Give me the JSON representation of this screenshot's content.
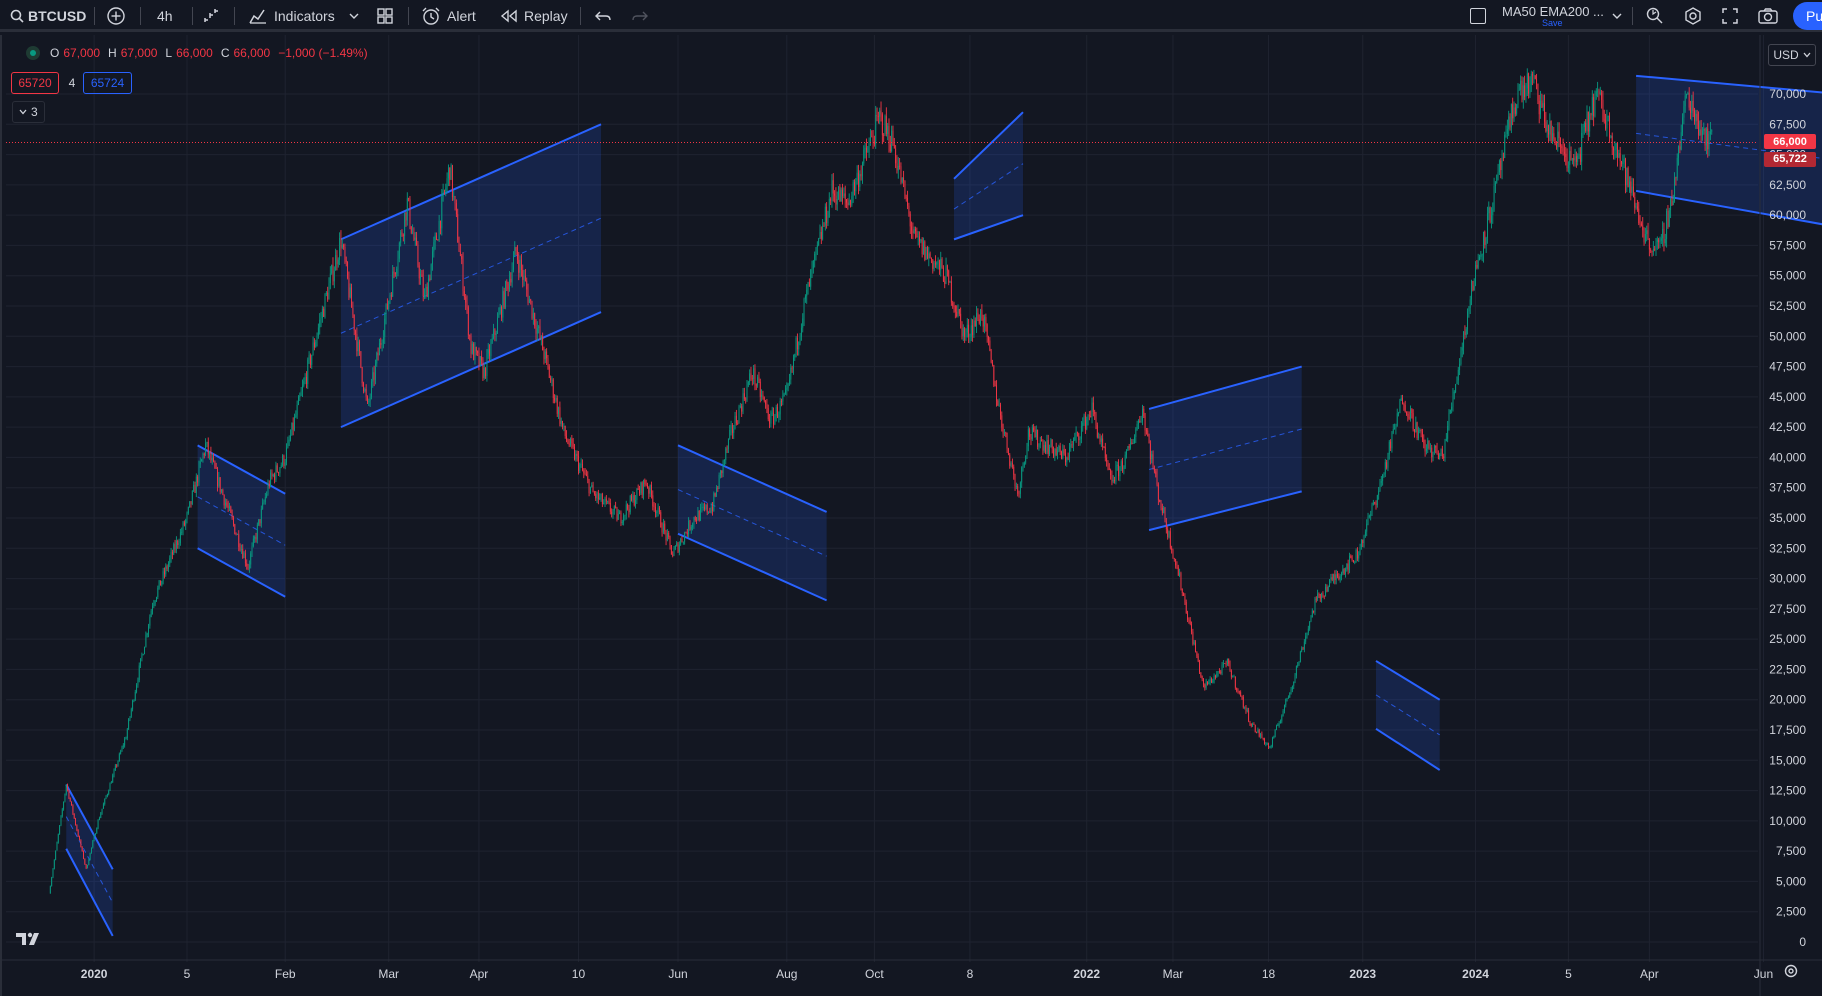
{
  "toolbar": {
    "symbol": "BTCUSD",
    "interval": "4h",
    "indicators_label": "Indicators",
    "alert_label": "Alert",
    "replay_label": "Replay",
    "layout_name": "MA50 EMA200 ...",
    "layout_save": "Save",
    "publish_label": "Pu",
    "icons": [
      "search-icon",
      "add-symbol-icon",
      "bar-style-icon",
      "indicators-icon",
      "templates-icon",
      "alert-icon",
      "replay-icon",
      "undo-icon",
      "redo-icon",
      "layout-icon",
      "quick-search-icon",
      "settings-icon",
      "fullscreen-icon",
      "camera-icon"
    ]
  },
  "legend": {
    "o_label": "O",
    "o_value": "67,000",
    "h_label": "H",
    "h_value": "67,000",
    "l_label": "L",
    "l_value": "66,000",
    "c_label": "C",
    "c_value": "66,000",
    "change": "−1,000 (−1.49%)",
    "sell_price": "65720",
    "spread": "4",
    "buy_price": "65724",
    "collapsed_count": "3"
  },
  "price_scale": {
    "currency": "USD",
    "last_price_label": "66,000",
    "bid_label": "65,722",
    "last_price": 66000,
    "bid_price": 65722
  },
  "colors": {
    "up": "#089981",
    "down": "#f23645",
    "channel_line": "#2962ff",
    "channel_fill": "#2962ff",
    "background": "#131722",
    "grid": "#1f2330"
  },
  "chart_data": {
    "type": "candlestick",
    "title": "",
    "ylim": [
      0,
      72500
    ],
    "y_ticks": [
      0,
      2500,
      5000,
      7500,
      10000,
      12500,
      15000,
      17500,
      20000,
      22500,
      25000,
      27500,
      30000,
      32500,
      35000,
      37500,
      40000,
      42500,
      45000,
      47500,
      50000,
      52500,
      55000,
      57500,
      60000,
      62500,
      65000,
      67500,
      70000
    ],
    "y_tick_labels": [
      "0",
      "2,500",
      "5,000",
      "7,500",
      "10,000",
      "12,500",
      "15,000",
      "17,500",
      "20,000",
      "22,500",
      "25,000",
      "27,500",
      "30,000",
      "32,500",
      "35,000",
      "37,500",
      "40,000",
      "42,500",
      "45,000",
      "47,500",
      "50,000",
      "52,500",
      "55,000",
      "57,500",
      "60,000",
      "62,500",
      "65,000",
      "67,500",
      "70,000"
    ],
    "x_ticks": [
      "2020",
      "5",
      "Feb",
      "Mar",
      "Apr",
      "10",
      "Jun",
      "Aug",
      "Oct",
      "8",
      "2022",
      "Mar",
      "18",
      "2023",
      "2024",
      "5",
      "Apr",
      "Jun"
    ],
    "x_tick_bars": [
      34,
      104,
      178,
      256,
      324,
      399,
      474,
      556,
      622,
      694,
      782,
      847,
      919,
      990,
      1075,
      1145,
      1206,
      1292
    ],
    "price_path": [
      [
        0,
        4000
      ],
      [
        13,
        13000
      ],
      [
        28,
        6000
      ],
      [
        37,
        10000
      ],
      [
        58,
        17000
      ],
      [
        78,
        28000
      ],
      [
        104,
        35000
      ],
      [
        118,
        41000
      ],
      [
        150,
        31000
      ],
      [
        166,
        38000
      ],
      [
        178,
        40000
      ],
      [
        220,
        58000
      ],
      [
        240,
        44000
      ],
      [
        270,
        61000
      ],
      [
        283,
        53000
      ],
      [
        302,
        64000
      ],
      [
        318,
        49000
      ],
      [
        328,
        47000
      ],
      [
        352,
        57000
      ],
      [
        372,
        49000
      ],
      [
        388,
        42000
      ],
      [
        410,
        37000
      ],
      [
        430,
        35000
      ],
      [
        450,
        38000
      ],
      [
        470,
        32000
      ],
      [
        486,
        35000
      ],
      [
        500,
        36000
      ],
      [
        514,
        42000
      ],
      [
        530,
        47000
      ],
      [
        544,
        43000
      ],
      [
        556,
        45000
      ],
      [
        568,
        52000
      ],
      [
        590,
        62000
      ],
      [
        602,
        61000
      ],
      [
        626,
        68000
      ],
      [
        636,
        66000
      ],
      [
        652,
        58000
      ],
      [
        676,
        55000
      ],
      [
        690,
        50000
      ],
      [
        703,
        52000
      ],
      [
        716,
        44000
      ],
      [
        730,
        37000
      ],
      [
        738,
        42000
      ],
      [
        766,
        40000
      ],
      [
        786,
        44000
      ],
      [
        800,
        38000
      ],
      [
        812,
        40000
      ],
      [
        824,
        44000
      ],
      [
        836,
        37000
      ],
      [
        852,
        30000
      ],
      [
        870,
        21000
      ],
      [
        888,
        23000
      ],
      [
        906,
        18000
      ],
      [
        920,
        16000
      ],
      [
        936,
        21000
      ],
      [
        954,
        28000
      ],
      [
        968,
        30000
      ],
      [
        986,
        32000
      ],
      [
        1004,
        38000
      ],
      [
        1020,
        45000
      ],
      [
        1036,
        41000
      ],
      [
        1050,
        40000
      ],
      [
        1074,
        55000
      ],
      [
        1090,
        62000
      ],
      [
        1106,
        70000
      ],
      [
        1118,
        71000
      ],
      [
        1130,
        67000
      ],
      [
        1150,
        64000
      ],
      [
        1166,
        70000
      ],
      [
        1180,
        66000
      ],
      [
        1204,
        58000
      ],
      [
        1214,
        57000
      ],
      [
        1224,
        62000
      ],
      [
        1234,
        70000
      ],
      [
        1246,
        67000
      ],
      [
        1253,
        66000
      ]
    ],
    "channels": [
      {
        "start_bar": 13,
        "end_bar": 48,
        "top": [
          13000,
          6000
        ],
        "bottom": [
          7700,
          500
        ]
      },
      {
        "start_bar": 112,
        "end_bar": 178,
        "top": [
          41000,
          37000
        ],
        "bottom": [
          32500,
          28500
        ]
      },
      {
        "start_bar": 220,
        "end_bar": 416,
        "top": [
          58000,
          67500
        ],
        "bottom": [
          42500,
          52000
        ]
      },
      {
        "start_bar": 474,
        "end_bar": 586,
        "top": [
          41000,
          35500
        ],
        "bottom": [
          33700,
          28200
        ]
      },
      {
        "start_bar": 682,
        "end_bar": 734,
        "top": [
          63000,
          68500
        ],
        "bottom": [
          58000,
          60000
        ]
      },
      {
        "start_bar": 829,
        "end_bar": 944,
        "top": [
          44000,
          47500
        ],
        "bottom": [
          34000,
          37200
        ]
      },
      {
        "start_bar": 1000,
        "end_bar": 1048,
        "top": [
          23200,
          20000
        ],
        "bottom": [
          17600,
          14200
        ]
      },
      {
        "start_bar": 1196,
        "end_bar": 1400,
        "top": [
          71500,
          69500
        ],
        "bottom": [
          62000,
          58000
        ]
      }
    ]
  }
}
